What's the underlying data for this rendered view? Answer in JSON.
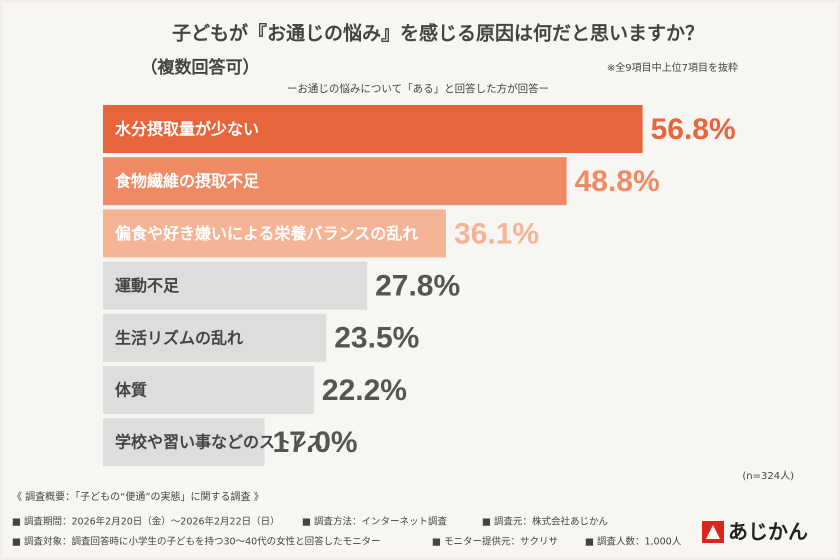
{
  "chart_data": {
    "type": "bar",
    "title": "子どもが『お通じの悩み』を感じる原因は何だと思いますか？",
    "subtitle": "（複数回答可）",
    "note": "※全9項目中上位7項目を抜粋",
    "caption": "ーお通じの悩みについて「ある」と回答した方が回答ー",
    "sample": "(n=324人)",
    "categories": [
      "水分摂取量が少ない",
      "食物繊維の摂取不足",
      "偏食や好き嫌いによる栄養バランスの乱れ",
      "運動不足",
      "生活リズムの乱れ",
      "体質",
      "学校や習い事などのストレス"
    ],
    "values": [
      56.8,
      48.8,
      36.1,
      27.8,
      23.5,
      22.2,
      17.0
    ],
    "value_labels": [
      "56.8%",
      "48.8%",
      "36.1%",
      "27.8%",
      "23.5%",
      "22.2%",
      "17.0%"
    ],
    "colors": [
      "#e8643a",
      "#f08a64",
      "#f6b497",
      "#dddddd",
      "#dddddd",
      "#dddddd",
      "#dddddd"
    ],
    "text_colors": [
      "#ffffff",
      "#ffffff",
      "#ffffff",
      "#444444",
      "#444444",
      "#444444",
      "#444444"
    ],
    "value_label_colors": [
      "#e8643a",
      "#f08a64",
      "#f6b497",
      "#555555",
      "#555555",
      "#555555",
      "#555555"
    ]
  },
  "footer": {
    "heading": "《 調査概要：「子どもの“便通”の実態」に関する調査 》",
    "items": [
      "■ 調査期間：2026年2月20日（金）〜2026年2月22日（日）",
      "■ 調査方法：インターネット調査",
      "■ 調査元：株式会社あじかん",
      "■ 調査対象：調査回答時に小学生の子どもを持つ30〜40代の女性と回答したモニター",
      "■ モニター提供元：サクリサ",
      "■ 調査人数：1,000人"
    ]
  },
  "logo": "あじかん"
}
